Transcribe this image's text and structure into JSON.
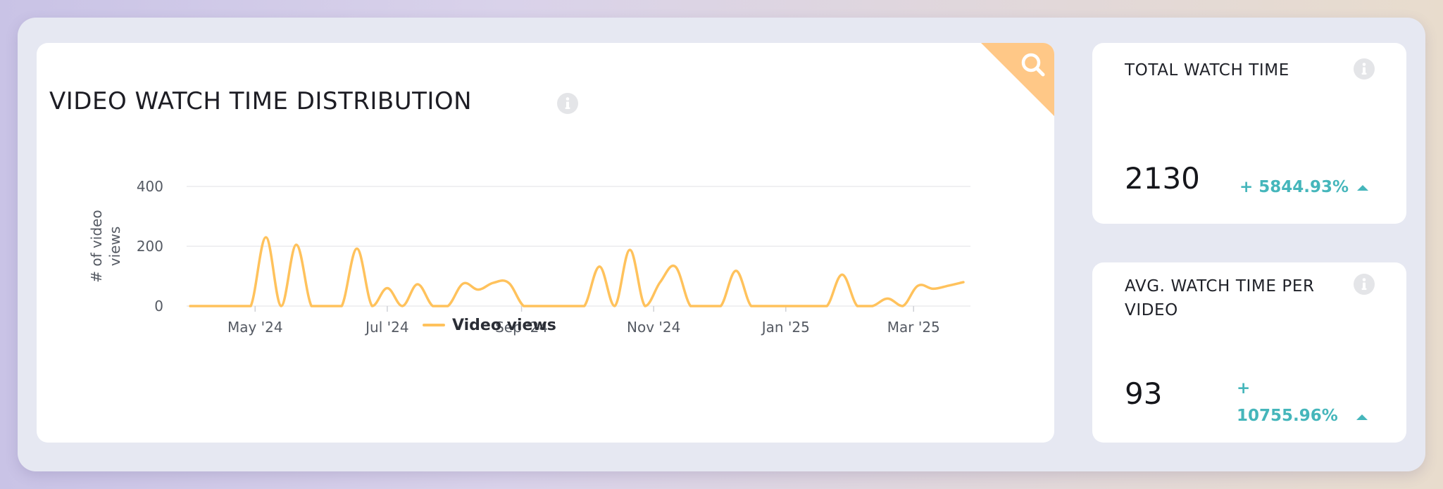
{
  "main_chart": {
    "title": "VIDEO WATCH TIME DISTRIBUTION"
  },
  "chart_data": {
    "type": "line",
    "title": "VIDEO WATCH TIME DISTRIBUTION",
    "xlabel": "",
    "ylabel": "# of video views",
    "ylim": [
      0,
      400
    ],
    "yticks": [
      "0",
      "200",
      "400"
    ],
    "xticks": [
      "May '24",
      "Jul '24",
      "Sep '24",
      "Nov '24",
      "Jan '25",
      "Mar '25"
    ],
    "grid": true,
    "legend_position": "bottom-center",
    "series": [
      {
        "name": "Video views",
        "color": "#ffc25c",
        "points": [
          [
            "2024-04-01",
            0
          ],
          [
            "2024-04-08",
            0
          ],
          [
            "2024-04-15",
            0
          ],
          [
            "2024-04-22",
            0
          ],
          [
            "2024-04-29",
            0
          ],
          [
            "2024-05-06",
            230
          ],
          [
            "2024-05-13",
            0
          ],
          [
            "2024-05-20",
            205
          ],
          [
            "2024-05-27",
            0
          ],
          [
            "2024-06-03",
            0
          ],
          [
            "2024-06-10",
            0
          ],
          [
            "2024-06-17",
            192
          ],
          [
            "2024-06-24",
            0
          ],
          [
            "2024-07-01",
            60
          ],
          [
            "2024-07-08",
            0
          ],
          [
            "2024-07-15",
            73
          ],
          [
            "2024-07-22",
            0
          ],
          [
            "2024-07-29",
            0
          ],
          [
            "2024-08-05",
            75
          ],
          [
            "2024-08-12",
            55
          ],
          [
            "2024-08-19",
            78
          ],
          [
            "2024-08-26",
            78
          ],
          [
            "2024-09-02",
            0
          ],
          [
            "2024-09-09",
            0
          ],
          [
            "2024-09-16",
            0
          ],
          [
            "2024-09-23",
            0
          ],
          [
            "2024-09-30",
            0
          ],
          [
            "2024-10-07",
            132
          ],
          [
            "2024-10-14",
            0
          ],
          [
            "2024-10-21",
            188
          ],
          [
            "2024-10-28",
            0
          ],
          [
            "2024-11-04",
            80
          ],
          [
            "2024-11-11",
            132
          ],
          [
            "2024-11-18",
            0
          ],
          [
            "2024-11-25",
            0
          ],
          [
            "2024-12-02",
            0
          ],
          [
            "2024-12-09",
            118
          ],
          [
            "2024-12-16",
            0
          ],
          [
            "2024-12-23",
            0
          ],
          [
            "2024-12-30",
            0
          ],
          [
            "2025-01-06",
            0
          ],
          [
            "2025-01-13",
            0
          ],
          [
            "2025-01-20",
            0
          ],
          [
            "2025-01-27",
            105
          ],
          [
            "2025-02-03",
            0
          ],
          [
            "2025-02-10",
            0
          ],
          [
            "2025-02-17",
            25
          ],
          [
            "2025-02-24",
            0
          ],
          [
            "2025-03-03",
            68
          ],
          [
            "2025-03-10",
            58
          ],
          [
            "2025-03-17",
            68
          ],
          [
            "2025-03-24",
            80
          ]
        ]
      }
    ]
  },
  "stats": [
    {
      "title": "TOTAL WATCH TIME",
      "value": "2130",
      "change": "+ 5844.93%",
      "trend": "up",
      "color": "#45b6bb"
    },
    {
      "title": "AVG. WATCH TIME PER VIDEO",
      "value": "93",
      "change_sign": "+",
      "change_value": "10755.96%",
      "trend": "up",
      "color": "#45b6bb"
    }
  ],
  "icons": {
    "corner": "search-icon",
    "info": "info-icon"
  }
}
